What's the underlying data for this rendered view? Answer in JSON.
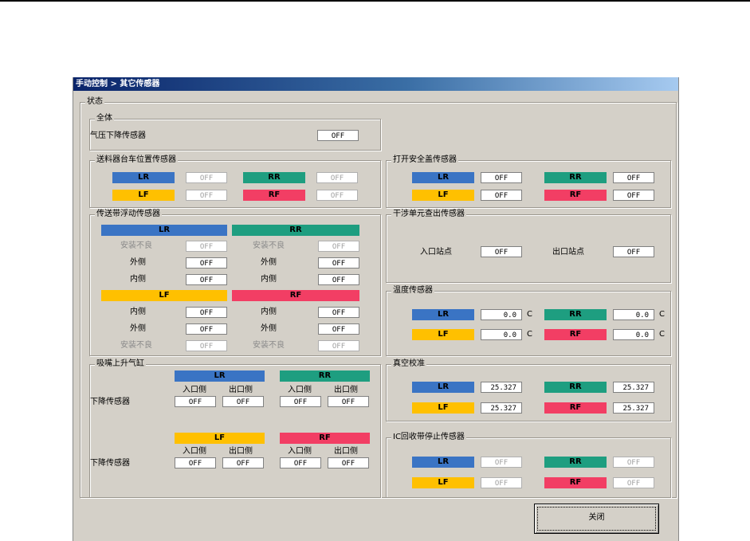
{
  "title": "手动控制 > 其它传感器",
  "status_label": "状态",
  "tags": {
    "lr": "LR",
    "rr": "RR",
    "lf": "LF",
    "rf": "RF"
  },
  "colors": {
    "lr": "#3a74c4",
    "rr": "#1e9e80",
    "lf": "#ffc000",
    "rf": "#f23e64"
  },
  "overall": {
    "title": "全体",
    "pressure_label": "气压下降传感器",
    "pressure_value": "OFF"
  },
  "feeder": {
    "title": "送料器台车位置传感器",
    "lr": "OFF",
    "rr": "OFF",
    "lf": "OFF",
    "rf": "OFF"
  },
  "safety_cover": {
    "title": "打开安全盖传感器",
    "lr": "OFF",
    "rr": "OFF",
    "lf": "OFF",
    "rf": "OFF"
  },
  "belt": {
    "title": "传送带浮动传感器",
    "labels": {
      "install_bad": "安装不良",
      "outer": "外侧",
      "inner": "内侧"
    },
    "lr": {
      "install_bad": "OFF",
      "outer": "OFF",
      "inner": "OFF"
    },
    "rr": {
      "install_bad": "OFF",
      "outer": "OFF",
      "inner": "OFF"
    },
    "lf": {
      "inner": "OFF",
      "outer": "OFF",
      "install_bad": "OFF"
    },
    "rf": {
      "inner": "OFF",
      "outer": "OFF",
      "install_bad": "OFF"
    }
  },
  "stepper": {
    "title": "干涉单元查出传感器",
    "entry_label": "入口站点",
    "entry_value": "OFF",
    "exit_label": "出口站点",
    "exit_value": "OFF"
  },
  "temperature": {
    "title": "温度传感器",
    "unit": "C",
    "lr": "0.0",
    "rr": "0.0",
    "lf": "0.0",
    "rf": "0.0"
  },
  "nozzle": {
    "title": "吸嘴上升气缸",
    "entry_label": "入口侧",
    "exit_label": "出口侧",
    "down_label": "下降传感器",
    "lr": {
      "entry": "OFF",
      "exit": "OFF"
    },
    "rr": {
      "entry": "OFF",
      "exit": "OFF"
    },
    "lf": {
      "entry": "OFF",
      "exit": "OFF"
    },
    "rf": {
      "entry": "OFF",
      "exit": "OFF"
    }
  },
  "vacuum": {
    "title": "真空校准",
    "lr": "25.327",
    "rr": "25.327",
    "lf": "25.327",
    "rf": "25.327"
  },
  "ic_belt": {
    "title": "IC回收带停止传感器",
    "lr": "OFF",
    "rr": "OFF",
    "lf": "OFF",
    "rf": "OFF"
  },
  "close_button": "关闭"
}
